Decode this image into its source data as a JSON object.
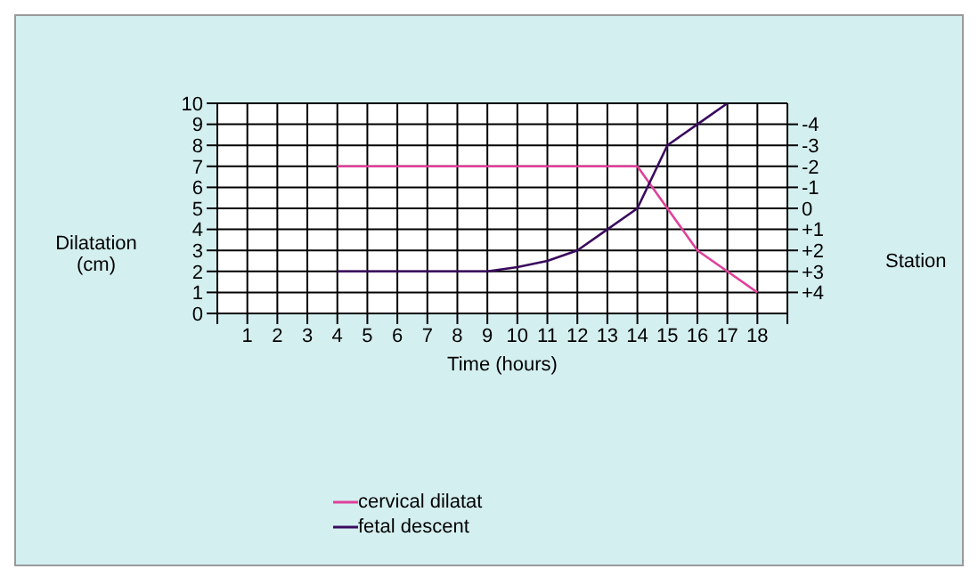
{
  "chart_data": {
    "type": "line",
    "xlabel": "Time (hours)",
    "ylabel": "Dilatation (cm)",
    "y2label": "Station",
    "x": [
      4,
      5,
      6,
      7,
      8,
      9,
      10,
      11,
      12,
      13,
      14,
      15,
      16,
      17,
      18
    ],
    "series": [
      {
        "name": "cervical dilatat",
        "color": "#e0409a",
        "values": [
          7,
          7,
          7,
          7,
          7,
          7,
          7,
          7,
          7,
          7,
          7,
          5,
          3,
          2,
          1
        ]
      },
      {
        "name": "fetal descent",
        "color": "#3a0a5e",
        "values": [
          2,
          2,
          2,
          2,
          2,
          2,
          2.2,
          2.5,
          3,
          4,
          5,
          8,
          9,
          10,
          null
        ]
      }
    ],
    "xlim": [
      0,
      19
    ],
    "xticks": [
      {
        "value": 0,
        "label": null
      },
      1,
      2,
      3,
      4,
      5,
      6,
      7,
      8,
      9,
      10,
      11,
      12,
      13,
      14,
      15,
      16,
      17,
      18,
      {
        "value": 19,
        "label": null
      }
    ],
    "ylim": [
      0,
      10
    ],
    "yticks": [
      0,
      1,
      2,
      3,
      4,
      5,
      6,
      7,
      8,
      9,
      10
    ],
    "y2lim": [
      5,
      -5
    ],
    "y2ticks": [
      -4,
      -3,
      -2,
      -1,
      0,
      {
        "value": 1,
        "label": "+1"
      },
      {
        "value": 2,
        "label": "+2"
      },
      {
        "value": 3,
        "label": "+3"
      },
      {
        "value": 4,
        "label": "+4"
      }
    ],
    "grid": true,
    "legend": "bottom",
    "marker": "none",
    "line_style": "solid"
  }
}
